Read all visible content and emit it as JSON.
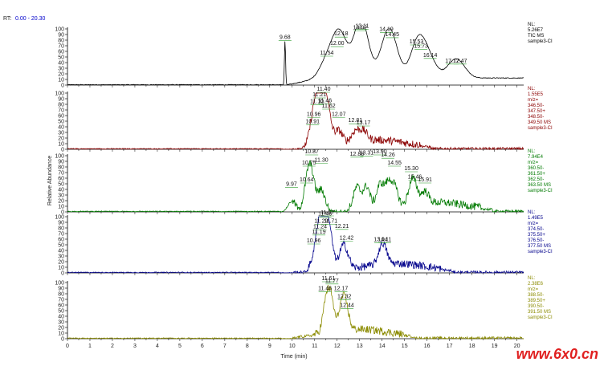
{
  "header": {
    "rt_prefix": "RT:",
    "rt_range": "0.00 - 20.30"
  },
  "ylabel": "Relative Abundance",
  "xlabel": "Time (min)",
  "watermark": "www.6x0.cn",
  "colors": {
    "black": "#000000",
    "red": "#8b0000",
    "green": "#007a00",
    "blue": "#00008b",
    "olive": "#8b8b00",
    "peakline": "#2e9e2e",
    "rt_range": "#0000cc",
    "watermark": "#e02020"
  },
  "chart_data": {
    "type": "line",
    "xlim": [
      0,
      20.3
    ],
    "xticks": [
      0,
      1,
      2,
      3,
      4,
      5,
      6,
      7,
      8,
      9,
      10,
      11,
      12,
      13,
      14,
      15,
      16,
      17,
      18,
      19,
      20
    ],
    "ylim": [
      0,
      100
    ],
    "yticks": [
      0,
      10,
      20,
      30,
      40,
      50,
      60,
      70,
      80,
      90,
      100
    ],
    "panels": [
      {
        "color": "#000000",
        "info": [
          "NL:",
          "5.26E7",
          "TIC  MS",
          "sample3-CI"
        ],
        "peaks": [
          {
            "rt": 9.68,
            "y": 78,
            "label": "9.68"
          },
          {
            "rt": 11.54,
            "y": 50,
            "label": "11.54"
          },
          {
            "rt": 12.0,
            "y": 67,
            "label": "12.00"
          },
          {
            "rt": 12.18,
            "y": 84,
            "label": "12.18"
          },
          {
            "rt": 13.02,
            "y": 95,
            "label": "13.02"
          },
          {
            "rt": 13.11,
            "y": 98,
            "label": "13.11"
          },
          {
            "rt": 14.19,
            "y": 92,
            "label": "14.19"
          },
          {
            "rt": 14.45,
            "y": 83,
            "label": "14.45"
          },
          {
            "rt": 15.53,
            "y": 70,
            "label": "15.53"
          },
          {
            "rt": 15.73,
            "y": 62,
            "label": "15.73"
          },
          {
            "rt": 16.14,
            "y": 46,
            "label": "16.14"
          },
          {
            "rt": 17.12,
            "y": 36,
            "label": "17.12"
          },
          {
            "rt": 17.47,
            "y": 36,
            "label": "17.47"
          }
        ]
      },
      {
        "color": "#8b0000",
        "info": [
          "NL:",
          "1.55E5",
          "m/z=",
          "346.50-",
          "347.50+",
          "348.50-",
          "349.50  MS",
          "sample3-CI"
        ],
        "peaks": [
          {
            "rt": 10.91,
            "y": 42,
            "label": "10.91"
          },
          {
            "rt": 10.96,
            "y": 55,
            "label": "10.96"
          },
          {
            "rt": 11.1,
            "y": 78,
            "label": "11.10"
          },
          {
            "rt": 11.21,
            "y": 90,
            "label": "11.21"
          },
          {
            "rt": 11.4,
            "y": 100,
            "label": "11.40"
          },
          {
            "rt": 11.46,
            "y": 79,
            "label": "11.46"
          },
          {
            "rt": 11.62,
            "y": 70,
            "label": "11.62"
          },
          {
            "rt": 12.07,
            "y": 55,
            "label": "12.07"
          },
          {
            "rt": 12.81,
            "y": 44,
            "label": "12.81"
          },
          {
            "rt": 13.17,
            "y": 40,
            "label": "13.17"
          }
        ]
      },
      {
        "color": "#007a00",
        "info": [
          "NL:",
          "7.94E4",
          "m/z=",
          "360.50-",
          "361.50+",
          "362.50-",
          "363.50  MS",
          "sample3-CI"
        ],
        "peaks": [
          {
            "rt": 9.97,
            "y": 42,
            "label": "9.97"
          },
          {
            "rt": 10.64,
            "y": 50,
            "label": "10.64"
          },
          {
            "rt": 10.75,
            "y": 80,
            "label": "10.75"
          },
          {
            "rt": 10.87,
            "y": 100,
            "label": "10.87"
          },
          {
            "rt": 11.3,
            "y": 85,
            "label": "11.30"
          },
          {
            "rt": 12.88,
            "y": 96,
            "label": "12.88"
          },
          {
            "rt": 13.31,
            "y": 98,
            "label": "13.31"
          },
          {
            "rt": 13.9,
            "y": 100,
            "label": "13.90"
          },
          {
            "rt": 14.26,
            "y": 94,
            "label": "14.26"
          },
          {
            "rt": 14.55,
            "y": 80,
            "label": "14.55"
          },
          {
            "rt": 15.3,
            "y": 70,
            "label": "15.30"
          },
          {
            "rt": 15.46,
            "y": 55,
            "label": "15.46"
          },
          {
            "rt": 15.91,
            "y": 50,
            "label": "15.91"
          }
        ]
      },
      {
        "color": "#00008b",
        "info": [
          "NL:",
          "1.49E5",
          "m/z=",
          "374.50-",
          "375.50+",
          "376.50-",
          "377.50  MS",
          "sample3-CI"
        ],
        "peaks": [
          {
            "rt": 10.96,
            "y": 50,
            "label": "10.96"
          },
          {
            "rt": 11.19,
            "y": 66,
            "label": "11.19"
          },
          {
            "rt": 11.24,
            "y": 75,
            "label": "11.24"
          },
          {
            "rt": 11.29,
            "y": 85,
            "label": "11.29"
          },
          {
            "rt": 11.46,
            "y": 98,
            "label": "11.46"
          },
          {
            "rt": 11.57,
            "y": 100,
            "label": "11.57"
          },
          {
            "rt": 11.71,
            "y": 85,
            "label": "11.71"
          },
          {
            "rt": 12.21,
            "y": 76,
            "label": "12.21"
          },
          {
            "rt": 12.42,
            "y": 55,
            "label": "12.42"
          },
          {
            "rt": 13.94,
            "y": 52,
            "label": "13.94"
          },
          {
            "rt": 14.11,
            "y": 52,
            "label": "14.11"
          }
        ]
      },
      {
        "color": "#8b8b00",
        "info": [
          "NL:",
          "2.38E6",
          "m/z=",
          "388.50-",
          "389.50+",
          "390.50-",
          "391.50  MS",
          "sample3-CI"
        ],
        "peaks": [
          {
            "rt": 11.46,
            "y": 82,
            "label": "11.46"
          },
          {
            "rt": 11.61,
            "y": 100,
            "label": "11.61"
          },
          {
            "rt": 11.77,
            "y": 96,
            "label": "11.77"
          },
          {
            "rt": 12.17,
            "y": 82,
            "label": "12.17"
          },
          {
            "rt": 12.32,
            "y": 68,
            "label": "12.32"
          },
          {
            "rt": 12.44,
            "y": 52,
            "label": "12.44"
          }
        ]
      }
    ]
  }
}
